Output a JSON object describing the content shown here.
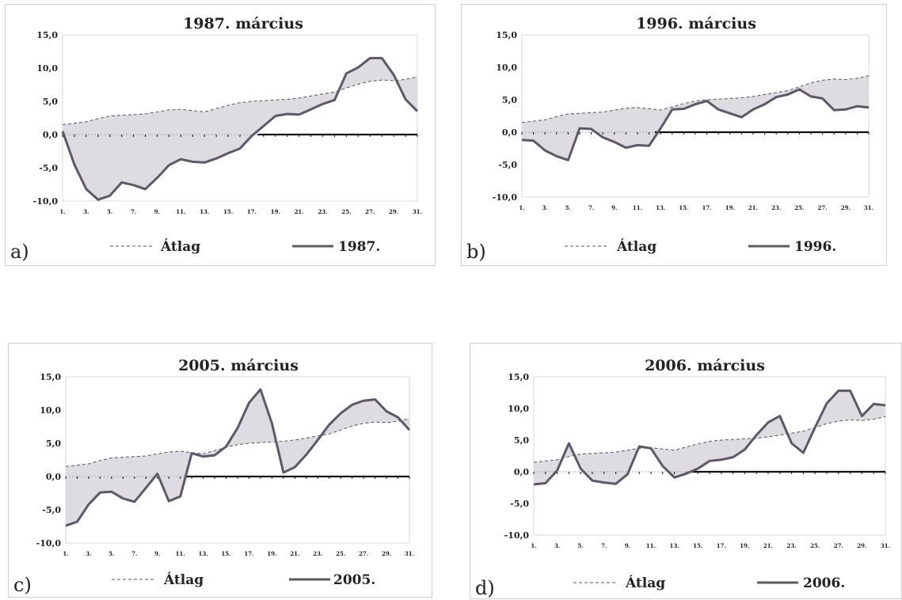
{
  "chart_data": [
    {
      "type": "line",
      "panel_label": "a)",
      "title": "1987. március",
      "ylim": [
        -10,
        15
      ],
      "yticks": [
        "15,0",
        "10,0",
        "5,0",
        "0,0",
        "-5,0",
        "-10,0"
      ],
      "xticks": [
        "1.",
        "3.",
        "5.",
        "7.",
        "9.",
        "11.",
        "13.",
        "15.",
        "17.",
        "19.",
        "21.",
        "23.",
        "25.",
        "27.",
        "29.",
        "31."
      ],
      "x": [
        1,
        2,
        3,
        4,
        5,
        6,
        7,
        8,
        9,
        10,
        11,
        12,
        13,
        14,
        15,
        16,
        17,
        18,
        19,
        20,
        21,
        22,
        23,
        24,
        25,
        26,
        27,
        28,
        29,
        30,
        31
      ],
      "legend": {
        "avg_label": "Átlag",
        "year_label": "1987."
      },
      "series": [
        {
          "name": "Átlag",
          "style": "dashed",
          "values": [
            1.5,
            1.7,
            1.9,
            2.4,
            2.8,
            2.9,
            3.0,
            3.1,
            3.4,
            3.7,
            3.8,
            3.6,
            3.4,
            3.9,
            4.4,
            4.8,
            5.0,
            5.1,
            5.2,
            5.3,
            5.5,
            5.8,
            6.1,
            6.4,
            7.0,
            7.6,
            8.0,
            8.2,
            8.1,
            8.3,
            8.7
          ]
        },
        {
          "name": "1987.",
          "style": "solid",
          "values": [
            0.5,
            -4.5,
            -8.2,
            -9.8,
            -9.2,
            -7.2,
            -7.6,
            -8.2,
            -6.5,
            -4.6,
            -3.7,
            -4.1,
            -4.2,
            -3.6,
            -2.8,
            -2.1,
            -0.2,
            1.3,
            2.8,
            3.1,
            3.0,
            3.8,
            4.6,
            5.2,
            9.2,
            10.1,
            11.5,
            11.5,
            9.0,
            5.3,
            3.5
          ]
        }
      ]
    },
    {
      "type": "line",
      "panel_label": "b)",
      "title": "1996. március",
      "ylim": [
        -10,
        15
      ],
      "yticks": [
        "15,0",
        "10,0",
        "5,0",
        "0,0",
        "-5,0",
        "-10,0"
      ],
      "xticks": [
        "1.",
        "3.",
        "5.",
        "7.",
        "9.",
        "11.",
        "13.",
        "15.",
        "17.",
        "19.",
        "21.",
        "23.",
        "25.",
        "27.",
        "29.",
        "31."
      ],
      "x": [
        1,
        2,
        3,
        4,
        5,
        6,
        7,
        8,
        9,
        10,
        11,
        12,
        13,
        14,
        15,
        16,
        17,
        18,
        19,
        20,
        21,
        22,
        23,
        24,
        25,
        26,
        27,
        28,
        29,
        30,
        31
      ],
      "legend": {
        "avg_label": "Átlag",
        "year_label": "1996."
      },
      "series": [
        {
          "name": "Átlag",
          "style": "dashed",
          "values": [
            1.5,
            1.7,
            1.9,
            2.4,
            2.8,
            2.9,
            3.0,
            3.1,
            3.4,
            3.7,
            3.8,
            3.6,
            3.4,
            3.9,
            4.4,
            4.8,
            5.0,
            5.1,
            5.2,
            5.3,
            5.5,
            5.8,
            6.1,
            6.4,
            7.0,
            7.6,
            8.0,
            8.2,
            8.1,
            8.3,
            8.7
          ]
        },
        {
          "name": "1996.",
          "style": "solid",
          "values": [
            -1.2,
            -1.3,
            -2.8,
            -3.7,
            -4.3,
            0.6,
            0.5,
            -0.8,
            -1.5,
            -2.4,
            -2.0,
            -2.1,
            0.6,
            3.5,
            3.6,
            4.3,
            4.8,
            3.5,
            2.9,
            2.3,
            3.5,
            4.3,
            5.4,
            5.8,
            6.6,
            5.5,
            5.2,
            3.4,
            3.5,
            4.0,
            3.8
          ]
        }
      ]
    },
    {
      "type": "line",
      "panel_label": "c)",
      "title": "2005. március",
      "ylim": [
        -10,
        15
      ],
      "yticks": [
        "15,0",
        "10,0",
        "5,0",
        "0,0",
        "-5,0",
        "-10,0"
      ],
      "xticks": [
        "1.",
        "3.",
        "5.",
        "7.",
        "9.",
        "11.",
        "13.",
        "15.",
        "17.",
        "19.",
        "21.",
        "23.",
        "25.",
        "27.",
        "29.",
        "31."
      ],
      "x": [
        1,
        2,
        3,
        4,
        5,
        6,
        7,
        8,
        9,
        10,
        11,
        12,
        13,
        14,
        15,
        16,
        17,
        18,
        19,
        20,
        21,
        22,
        23,
        24,
        25,
        26,
        27,
        28,
        29,
        30,
        31
      ],
      "legend": {
        "avg_label": "Átlag",
        "year_label": "2005."
      },
      "series": [
        {
          "name": "Átlag",
          "style": "dashed",
          "values": [
            1.5,
            1.7,
            1.9,
            2.4,
            2.8,
            2.9,
            3.0,
            3.1,
            3.4,
            3.7,
            3.8,
            3.6,
            3.4,
            3.9,
            4.4,
            4.8,
            5.0,
            5.1,
            5.2,
            5.3,
            5.5,
            5.8,
            6.1,
            6.4,
            7.0,
            7.6,
            8.0,
            8.2,
            8.1,
            8.3,
            8.7
          ]
        },
        {
          "name": "2005.",
          "style": "solid",
          "values": [
            -7.4,
            -6.8,
            -4.2,
            -2.4,
            -2.3,
            -3.3,
            -3.8,
            -1.7,
            0.4,
            -3.7,
            -3.0,
            3.5,
            3.0,
            3.2,
            4.5,
            7.3,
            11.1,
            13.1,
            8.0,
            0.6,
            1.4,
            3.3,
            5.5,
            7.8,
            9.5,
            10.8,
            11.4,
            11.6,
            9.8,
            8.9,
            7.0
          ]
        }
      ]
    },
    {
      "type": "line",
      "panel_label": "d)",
      "title": "2006. március",
      "ylim": [
        -10,
        15
      ],
      "yticks": [
        "15,0",
        "10,0",
        "5,0",
        "0,0",
        "-5,0",
        "-10,0"
      ],
      "xticks": [
        "1.",
        "3.",
        "5.",
        "7.",
        "9.",
        "11.",
        "13.",
        "15.",
        "17.",
        "19.",
        "21.",
        "23.",
        "25.",
        "27.",
        "29.",
        "31."
      ],
      "x": [
        1,
        2,
        3,
        4,
        5,
        6,
        7,
        8,
        9,
        10,
        11,
        12,
        13,
        14,
        15,
        16,
        17,
        18,
        19,
        20,
        21,
        22,
        23,
        24,
        25,
        26,
        27,
        28,
        29,
        30,
        31
      ],
      "legend": {
        "avg_label": "Átlag",
        "year_label": "2006."
      },
      "series": [
        {
          "name": "Átlag",
          "style": "dashed",
          "values": [
            1.5,
            1.7,
            1.9,
            2.4,
            2.8,
            2.9,
            3.0,
            3.1,
            3.4,
            3.7,
            3.8,
            3.6,
            3.4,
            3.9,
            4.4,
            4.8,
            5.0,
            5.1,
            5.2,
            5.3,
            5.5,
            5.8,
            6.1,
            6.4,
            7.0,
            7.6,
            8.0,
            8.2,
            8.1,
            8.3,
            8.7
          ]
        },
        {
          "name": "2006.",
          "style": "solid",
          "values": [
            -2.0,
            -1.8,
            0.2,
            4.5,
            0.5,
            -1.4,
            -1.7,
            -1.9,
            -0.4,
            4.0,
            3.7,
            0.9,
            -0.9,
            -0.3,
            0.5,
            1.7,
            1.9,
            2.3,
            3.5,
            5.8,
            7.8,
            8.8,
            4.5,
            3.0,
            7.0,
            10.8,
            12.8,
            12.8,
            8.8,
            10.7,
            10.5
          ]
        }
      ]
    }
  ]
}
